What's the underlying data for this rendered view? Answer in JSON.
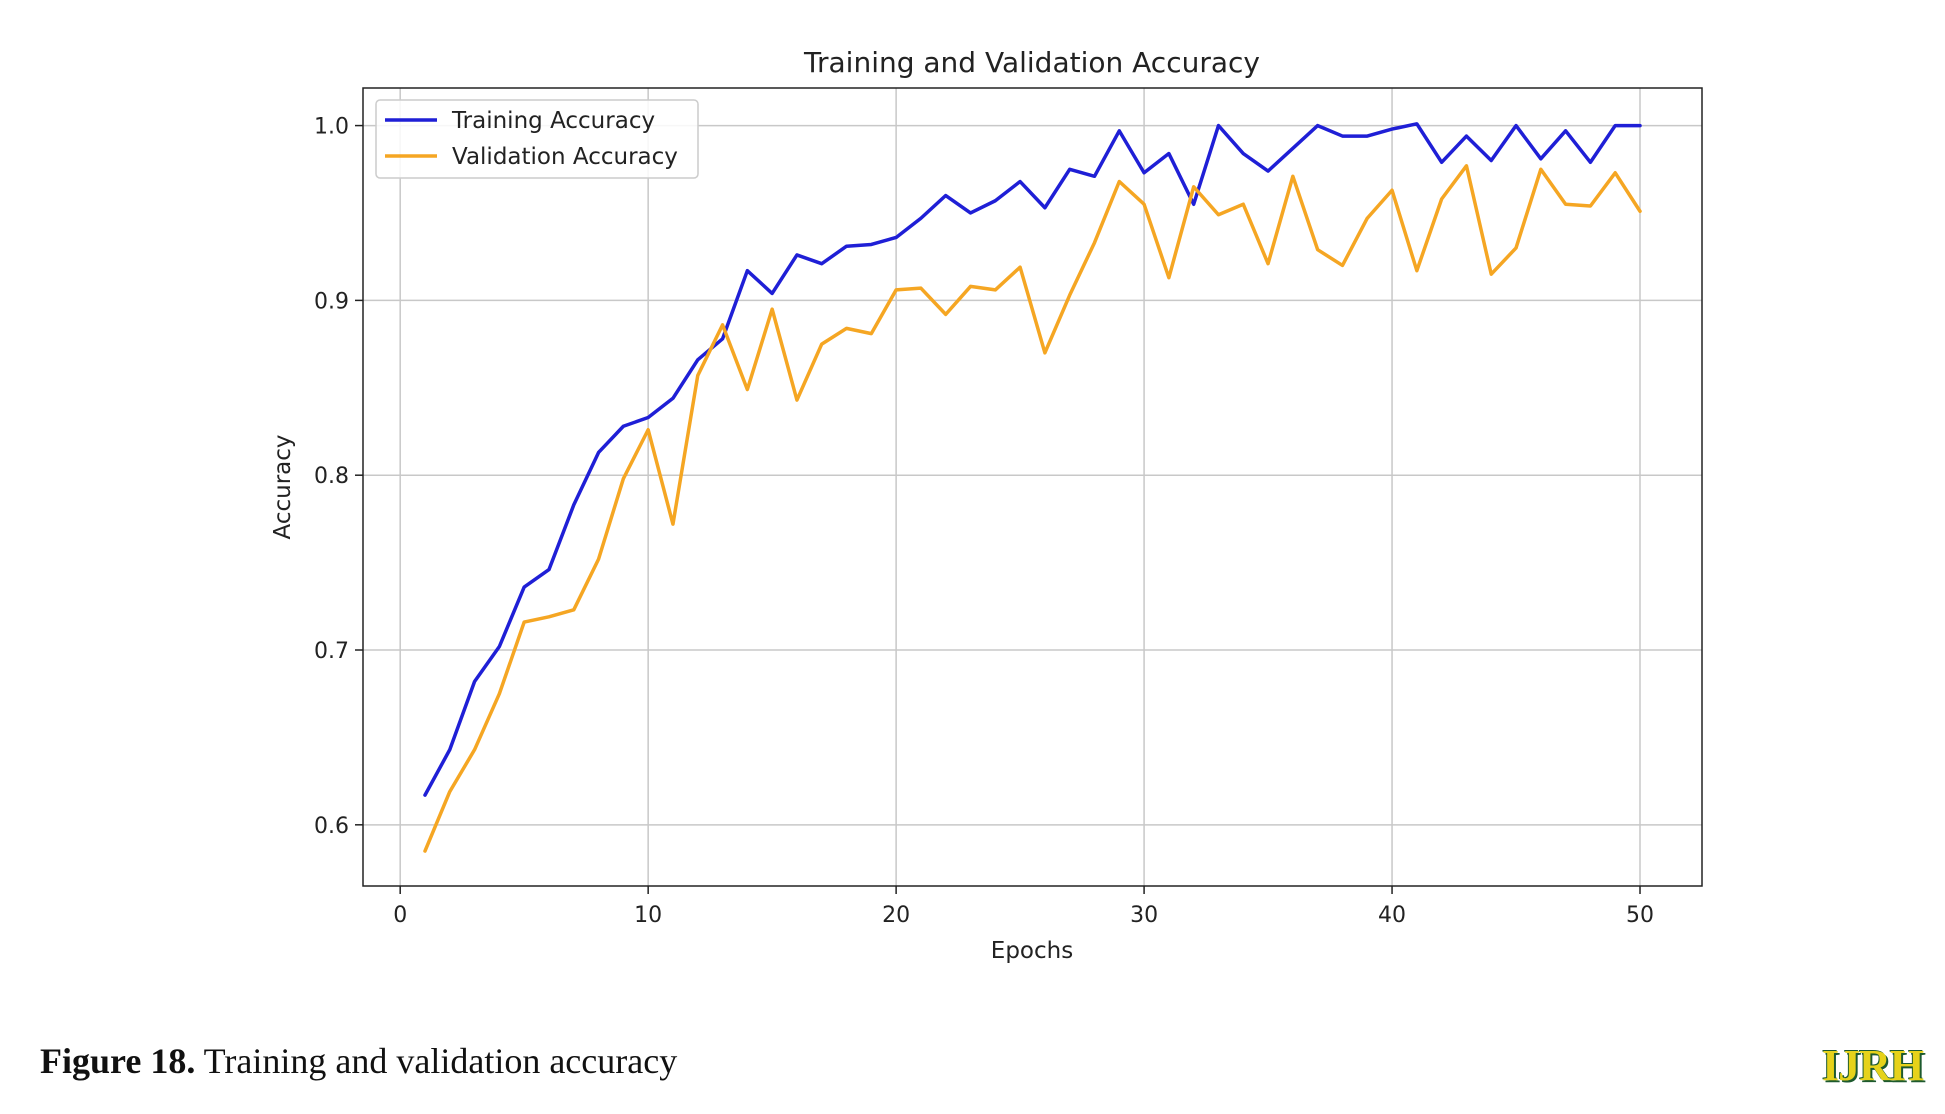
{
  "chart_data": {
    "type": "line",
    "title": "Training and Validation Accuracy",
    "xlabel": "Epochs",
    "ylabel": "Accuracy",
    "xlim": [
      -1.5,
      52.5
    ],
    "ylim": [
      0.565,
      1.0215
    ],
    "xticks": [
      0,
      10,
      20,
      30,
      40,
      50
    ],
    "yticks": [
      0.6,
      0.7,
      0.8,
      0.9,
      1.0
    ],
    "ytick_labels": [
      "0.6",
      "0.7",
      "0.8",
      "0.9",
      "1.0"
    ],
    "grid": true,
    "legend_position": "top-left",
    "x": [
      1,
      2,
      3,
      4,
      5,
      6,
      7,
      8,
      9,
      10,
      11,
      12,
      13,
      14,
      15,
      16,
      17,
      18,
      19,
      20,
      21,
      22,
      23,
      24,
      25,
      26,
      27,
      28,
      29,
      30,
      31,
      32,
      33,
      34,
      35,
      36,
      37,
      38,
      39,
      40,
      41,
      42,
      43,
      44,
      45,
      46,
      47,
      48,
      49,
      50
    ],
    "series": [
      {
        "name": "Training Accuracy",
        "color": "#1f1fd6",
        "values": [
          0.617,
          0.643,
          0.682,
          0.702,
          0.736,
          0.746,
          0.783,
          0.813,
          0.828,
          0.833,
          0.844,
          0.866,
          0.878,
          0.917,
          0.904,
          0.926,
          0.921,
          0.931,
          0.932,
          0.936,
          0.947,
          0.96,
          0.95,
          0.957,
          0.968,
          0.953,
          0.975,
          0.971,
          0.997,
          0.973,
          0.984,
          0.955,
          1.0,
          0.984,
          0.974,
          0.987,
          1.0,
          0.994,
          0.994,
          0.998,
          1.001,
          0.979,
          0.994,
          0.98,
          1.0,
          0.981,
          0.997,
          0.979,
          1.0,
          1.0
        ]
      },
      {
        "name": "Validation Accuracy",
        "color": "#f5a623",
        "values": [
          0.585,
          0.619,
          0.643,
          0.675,
          0.716,
          0.719,
          0.723,
          0.752,
          0.798,
          0.826,
          0.772,
          0.857,
          0.886,
          0.849,
          0.895,
          0.843,
          0.875,
          0.884,
          0.881,
          0.906,
          0.907,
          0.892,
          0.908,
          0.906,
          0.919,
          0.87,
          0.903,
          0.933,
          0.968,
          0.955,
          0.913,
          0.965,
          0.949,
          0.955,
          0.921,
          0.971,
          0.929,
          0.92,
          0.947,
          0.963,
          0.917,
          0.958,
          0.977,
          0.915,
          0.93,
          0.975,
          0.955,
          0.954,
          0.973,
          0.951
        ]
      }
    ]
  },
  "caption": {
    "label": "Figure 18.",
    "text": " Training and validation accuracy"
  },
  "logo_text": "IJRH"
}
